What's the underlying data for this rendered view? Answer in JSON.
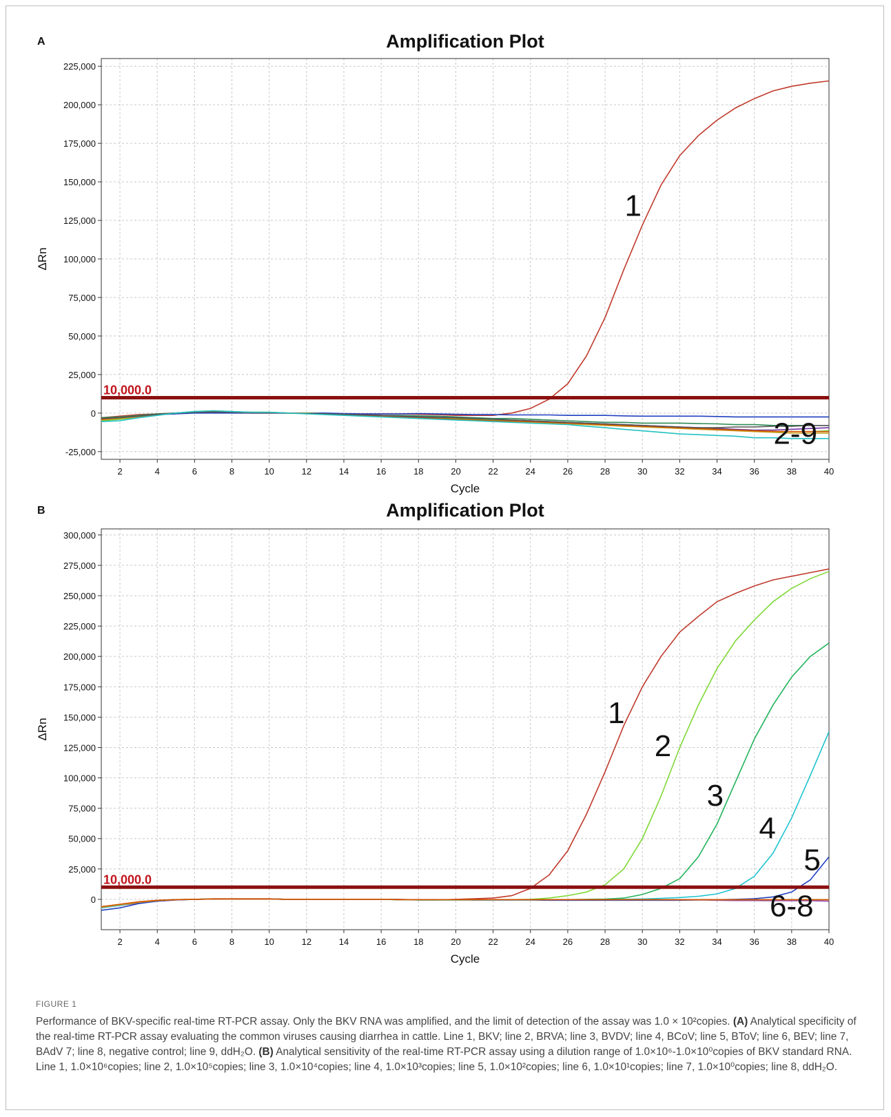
{
  "chart_data": [
    {
      "type": "line",
      "panel_label": "A",
      "title": "Amplification Plot",
      "xlabel": "Cycle",
      "ylabel": "ΔRn",
      "xlim": [
        1,
        40
      ],
      "ylim": [
        -30000,
        230000
      ],
      "xticks": [
        2,
        4,
        6,
        8,
        10,
        12,
        14,
        16,
        18,
        20,
        22,
        24,
        26,
        28,
        30,
        32,
        34,
        36,
        38,
        40
      ],
      "yticks": [
        -25000,
        0,
        25000,
        50000,
        75000,
        100000,
        125000,
        150000,
        175000,
        200000,
        225000
      ],
      "ytick_labels": [
        "-25,000",
        "0",
        "25,000",
        "50,000",
        "75,000",
        "100,000",
        "125,000",
        "150,000",
        "175,000",
        "200,000",
        "225,000"
      ],
      "grid": true,
      "threshold": {
        "value": 10000,
        "label": "10,000.0",
        "color": "#8b1010"
      },
      "x": [
        1,
        2,
        3,
        4,
        5,
        6,
        7,
        8,
        9,
        10,
        11,
        12,
        13,
        14,
        15,
        16,
        17,
        18,
        19,
        20,
        21,
        22,
        23,
        24,
        25,
        26,
        27,
        28,
        29,
        30,
        31,
        32,
        33,
        34,
        35,
        36,
        37,
        38,
        39,
        40
      ],
      "series": [
        {
          "color": "#c0392b",
          "values": [
            -3000,
            -2000,
            -1000,
            -500,
            0,
            500,
            800,
            500,
            0,
            0,
            0,
            0,
            -500,
            -500,
            -500,
            -500,
            -500,
            -800,
            -1000,
            -1500,
            -1500,
            -1500,
            0,
            3000,
            9000,
            19000,
            37000,
            62000,
            93000,
            122000,
            148000,
            167000,
            180000,
            190000,
            198000,
            204000,
            209000,
            212000,
            214000,
            215500
          ]
        },
        {
          "color": "#1f3fbf",
          "values": [
            -3500,
            -3000,
            -2000,
            -1000,
            -500,
            0,
            0,
            0,
            0,
            0,
            0,
            0,
            0,
            -300,
            -500,
            -500,
            -500,
            -300,
            -500,
            -800,
            -1000,
            -1000,
            -1200,
            -1200,
            -1200,
            -1500,
            -1500,
            -1500,
            -1800,
            -2000,
            -2000,
            -2000,
            -2000,
            -2200,
            -2500,
            -2500,
            -2500,
            -2500,
            -2500,
            -2500
          ]
        },
        {
          "color": "#2e8b57",
          "values": [
            -3000,
            -2500,
            -1500,
            -500,
            0,
            500,
            1000,
            800,
            500,
            500,
            0,
            0,
            -500,
            -800,
            -1000,
            -1500,
            -1500,
            -1800,
            -2000,
            -2500,
            -3000,
            -3500,
            -3500,
            -4000,
            -4500,
            -5000,
            -5500,
            -6000,
            -6000,
            -6500,
            -6500,
            -6500,
            -6800,
            -7000,
            -7500,
            -7500,
            -8000,
            -8000,
            -8000,
            -8000
          ]
        },
        {
          "color": "#7030a0",
          "values": [
            -4000,
            -3000,
            -2000,
            -1000,
            0,
            500,
            800,
            500,
            0,
            0,
            0,
            0,
            -500,
            -800,
            -1000,
            -1500,
            -2000,
            -2500,
            -2800,
            -3000,
            -3500,
            -4000,
            -4500,
            -5000,
            -5500,
            -6000,
            -6500,
            -7000,
            -7500,
            -8000,
            -8500,
            -9000,
            -9500,
            -10000,
            -10500,
            -11000,
            -11000,
            -10500,
            -10000,
            -9500
          ]
        },
        {
          "color": "#66cc33",
          "values": [
            -5000,
            -4000,
            -2500,
            -1000,
            0,
            1000,
            1500,
            1000,
            500,
            500,
            0,
            0,
            -500,
            -1000,
            -1500,
            -2000,
            -2500,
            -3000,
            -3200,
            -3500,
            -4000,
            -4500,
            -5000,
            -5500,
            -6000,
            -6500,
            -7000,
            -7500,
            -8000,
            -8500,
            -9000,
            -9500,
            -10000,
            -10500,
            -11000,
            -11500,
            -12000,
            -12000,
            -12000,
            -11500
          ]
        },
        {
          "color": "#c9a227",
          "values": [
            -4500,
            -3500,
            -2500,
            -1000,
            0,
            800,
            1200,
            800,
            500,
            300,
            0,
            -200,
            -500,
            -1000,
            -1500,
            -2000,
            -2500,
            -3000,
            -3500,
            -4000,
            -4500,
            -5000,
            -5500,
            -6000,
            -6500,
            -7000,
            -7500,
            -8000,
            -8500,
            -9000,
            -9500,
            -10000,
            -10500,
            -11000,
            -11500,
            -12000,
            -12500,
            -13000,
            -13000,
            -13000
          ]
        },
        {
          "color": "#d35400",
          "values": [
            -4000,
            -3000,
            -2000,
            -1000,
            0,
            700,
            1000,
            700,
            300,
            200,
            0,
            -200,
            -500,
            -1000,
            -1500,
            -2000,
            -2500,
            -3000,
            -3500,
            -4000,
            -4500,
            -5000,
            -5200,
            -5500,
            -6000,
            -6500,
            -7000,
            -7500,
            -8000,
            -8500,
            -9000,
            -9500,
            -10000,
            -10500,
            -11000,
            -11500,
            -11800,
            -12000,
            -12000,
            -12000
          ]
        },
        {
          "color": "#555555",
          "values": [
            -3500,
            -3000,
            -2000,
            -800,
            0,
            500,
            700,
            500,
            200,
            100,
            0,
            -200,
            -500,
            -800,
            -1200,
            -1500,
            -2000,
            -2500,
            -2800,
            -3000,
            -3500,
            -4000,
            -4500,
            -5000,
            -5500,
            -6000,
            -6500,
            -7000,
            -7500,
            -8000,
            -8500,
            -9000,
            -9500,
            -9500,
            -9000,
            -9000,
            -8500,
            -8500,
            -8000,
            -8000
          ]
        },
        {
          "color": "#22c1c3",
          "values": [
            -5500,
            -5000,
            -3000,
            -1500,
            0,
            1000,
            1500,
            1000,
            500,
            500,
            0,
            -500,
            -1000,
            -1500,
            -2000,
            -2500,
            -3000,
            -3500,
            -4000,
            -4500,
            -5000,
            -5500,
            -6000,
            -6500,
            -7000,
            -7500,
            -8500,
            -9500,
            -10500,
            -11500,
            -12500,
            -13500,
            -14000,
            -14500,
            -15000,
            -16000,
            -16000,
            -16500,
            -16500,
            -16500
          ]
        }
      ],
      "annotations": [
        {
          "text": "1",
          "x": 29.5,
          "y": 128000
        },
        {
          "text": "2-9",
          "x": 38.2,
          "y": -20000
        }
      ]
    },
    {
      "type": "line",
      "panel_label": "B",
      "title": "Amplification Plot",
      "xlabel": "Cycle",
      "ylabel": "ΔRn",
      "xlim": [
        1,
        40
      ],
      "ylim": [
        -25000,
        305000
      ],
      "xticks": [
        2,
        4,
        6,
        8,
        10,
        12,
        14,
        16,
        18,
        20,
        22,
        24,
        26,
        28,
        30,
        32,
        34,
        36,
        38,
        40
      ],
      "yticks": [
        0,
        25000,
        50000,
        75000,
        100000,
        125000,
        150000,
        175000,
        200000,
        225000,
        250000,
        275000,
        300000
      ],
      "ytick_labels": [
        "0",
        "25,000",
        "50,000",
        "75,000",
        "100,000",
        "125,000",
        "150,000",
        "175,000",
        "200,000",
        "225,000",
        "250,000",
        "275,000",
        "300,000"
      ],
      "grid": true,
      "threshold": {
        "value": 10000,
        "label": "10,000.0",
        "color": "#8b1010"
      },
      "x": [
        1,
        2,
        3,
        4,
        5,
        6,
        7,
        8,
        9,
        10,
        11,
        12,
        13,
        14,
        15,
        16,
        17,
        18,
        19,
        20,
        21,
        22,
        23,
        24,
        25,
        26,
        27,
        28,
        29,
        30,
        31,
        32,
        33,
        34,
        35,
        36,
        37,
        38,
        39,
        40
      ],
      "series": [
        {
          "color": "#c0392b",
          "values": [
            -7000,
            -5000,
            -3000,
            -1500,
            -500,
            0,
            500,
            500,
            500,
            500,
            0,
            0,
            0,
            0,
            0,
            0,
            0,
            -500,
            -500,
            0,
            500,
            1000,
            3000,
            9000,
            20000,
            40000,
            70000,
            105000,
            143000,
            175000,
            200000,
            220000,
            233000,
            245000,
            252000,
            258000,
            263000,
            266000,
            269000,
            272000
          ]
        },
        {
          "color": "#7fd836",
          "values": [
            -6500,
            -4500,
            -2500,
            -1000,
            -300,
            0,
            300,
            300,
            300,
            300,
            0,
            0,
            0,
            0,
            0,
            0,
            -300,
            -500,
            -500,
            -500,
            -500,
            -500,
            -300,
            0,
            1000,
            3000,
            6000,
            12000,
            25000,
            50000,
            85000,
            125000,
            160000,
            190000,
            213000,
            230000,
            245000,
            256000,
            264000,
            270000
          ]
        },
        {
          "color": "#21b35a",
          "values": [
            -6000,
            -4500,
            -2500,
            -1000,
            -300,
            0,
            300,
            300,
            300,
            300,
            0,
            0,
            0,
            0,
            0,
            0,
            -300,
            -500,
            -500,
            -500,
            -500,
            -500,
            -500,
            -500,
            -500,
            -300,
            0,
            200,
            1000,
            4000,
            9000,
            17000,
            35000,
            62000,
            97000,
            132000,
            160000,
            183000,
            200000,
            211000
          ]
        },
        {
          "color": "#1fc3d0",
          "values": [
            -7000,
            -5000,
            -2500,
            -1000,
            -300,
            0,
            300,
            300,
            300,
            300,
            0,
            0,
            0,
            0,
            0,
            0,
            -300,
            -500,
            -500,
            -500,
            -500,
            -500,
            -500,
            -500,
            -500,
            -500,
            -500,
            -300,
            0,
            300,
            800,
            1500,
            2500,
            4500,
            9000,
            19000,
            38000,
            67000,
            102000,
            138000
          ]
        },
        {
          "color": "#1f3fbf",
          "values": [
            -9000,
            -7000,
            -3500,
            -1500,
            -500,
            0,
            200,
            200,
            200,
            200,
            0,
            0,
            0,
            0,
            0,
            0,
            -200,
            -300,
            -300,
            -300,
            -500,
            -500,
            -500,
            -500,
            -800,
            -800,
            -800,
            -800,
            -800,
            -800,
            -800,
            -800,
            -500,
            -300,
            0,
            500,
            2000,
            6000,
            16000,
            35000
          ]
        },
        {
          "color": "#8e44ad",
          "values": [
            -6000,
            -4500,
            -2500,
            -1000,
            -300,
            0,
            300,
            300,
            300,
            300,
            0,
            0,
            0,
            0,
            0,
            0,
            -300,
            -300,
            -300,
            -300,
            -300,
            -300,
            -300,
            -300,
            -300,
            -300,
            -300,
            -300,
            -300,
            -300,
            -300,
            -500,
            -500,
            -800,
            -1000,
            -1000,
            -1200,
            -1200,
            -1200,
            -1500
          ]
        },
        {
          "color": "#c9a227",
          "values": [
            -6500,
            -4500,
            -2500,
            -1000,
            -300,
            0,
            300,
            300,
            300,
            300,
            0,
            0,
            0,
            0,
            0,
            0,
            -300,
            -300,
            -300,
            -300,
            -300,
            -300,
            -300,
            -300,
            -300,
            -300,
            -300,
            -300,
            -300,
            -300,
            -300,
            -300,
            -300,
            -300,
            -300,
            -300,
            -300,
            -300,
            -300,
            -300
          ]
        },
        {
          "color": "#d35400",
          "values": [
            -6000,
            -4000,
            -2000,
            -800,
            -200,
            0,
            300,
            300,
            300,
            300,
            0,
            0,
            0,
            0,
            0,
            0,
            -200,
            -200,
            -200,
            -200,
            -200,
            -200,
            -200,
            -200,
            -200,
            -200,
            -200,
            -200,
            -200,
            -200,
            -200,
            -300,
            -300,
            -300,
            -300,
            -300,
            -300,
            -300,
            -300,
            -300
          ]
        }
      ],
      "annotations": [
        {
          "text": "1",
          "x": 28.6,
          "y": 145000
        },
        {
          "text": "2",
          "x": 31.1,
          "y": 118000
        },
        {
          "text": "3",
          "x": 33.9,
          "y": 77000
        },
        {
          "text": "4",
          "x": 36.7,
          "y": 50000
        },
        {
          "text": "5",
          "x": 39.1,
          "y": 24000
        },
        {
          "text": "6-8",
          "x": 38.0,
          "y": -14000
        }
      ]
    }
  ],
  "caption": {
    "label": "FIGURE 1",
    "intro": "Performance of BKV-specific real-time RT-PCR assay. Only the BKV RNA was amplified, and the limit of detection of the assay was 1.0 × 10²copies.",
    "part_a_label": "(A)",
    "part_a_text": "Analytical specificity of the real-time RT-PCR assay evaluating the common viruses causing diarrhea in cattle. Line 1, BKV; line 2, BRVA; line 3, BVDV; line 4, BCoV; line 5, BToV; line 6, BEV; line 7, BAdV 7; line 8, negative control; line 9, ddH₂O.",
    "part_b_label": "(B)",
    "part_b_text": "Analytical sensitivity of the real-time RT-PCR assay using a dilution range of 1.0×10⁶-1.0×10⁰copies of BKV standard RNA. Line 1, 1.0×10⁶copies; line 2, 1.0×10⁵copies; line 3, 1.0×10⁴copies; line 4, 1.0×10³copies; line 5, 1.0×10²copies; line 6, 1.0×10¹copies; line 7, 1.0×10⁰copies; line 8, ddH₂O."
  }
}
